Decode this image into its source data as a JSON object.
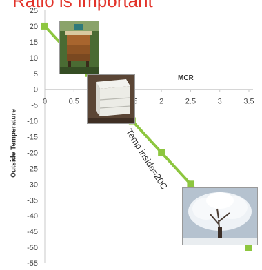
{
  "title": "Ratio is Important",
  "chart_data": {
    "type": "line",
    "title": "Ratio is Important",
    "xlabel": "MCR",
    "ylabel": "Outside  Temperature",
    "xlim": [
      0,
      3.5
    ],
    "ylim": [
      -55,
      25
    ],
    "x_ticks": [
      0,
      0.5,
      1,
      1.5,
      2,
      2.5,
      3,
      3.5
    ],
    "x_tick_labels": [
      "0",
      "0.5",
      "1",
      "1.5",
      "2",
      "2.5",
      "3",
      "3.5"
    ],
    "y_ticks": [
      25,
      20,
      15,
      10,
      5,
      0,
      -5,
      -10,
      -15,
      -20,
      -25,
      -30,
      -35,
      -40,
      -45,
      -50,
      -55
    ],
    "grid": false,
    "series": [
      {
        "color": "#8dc63f",
        "x": [
          0,
          0.75,
          1.5,
          2,
          2.5,
          3.5
        ],
        "y": [
          20,
          5,
          -10,
          -20,
          -30,
          -50
        ]
      }
    ],
    "annotation": "Temp inside=20C"
  },
  "images": {
    "hive1": "beehive-photo",
    "hive2": "white-hive-box-photo",
    "tree": "snow-covered-tree-photo"
  }
}
